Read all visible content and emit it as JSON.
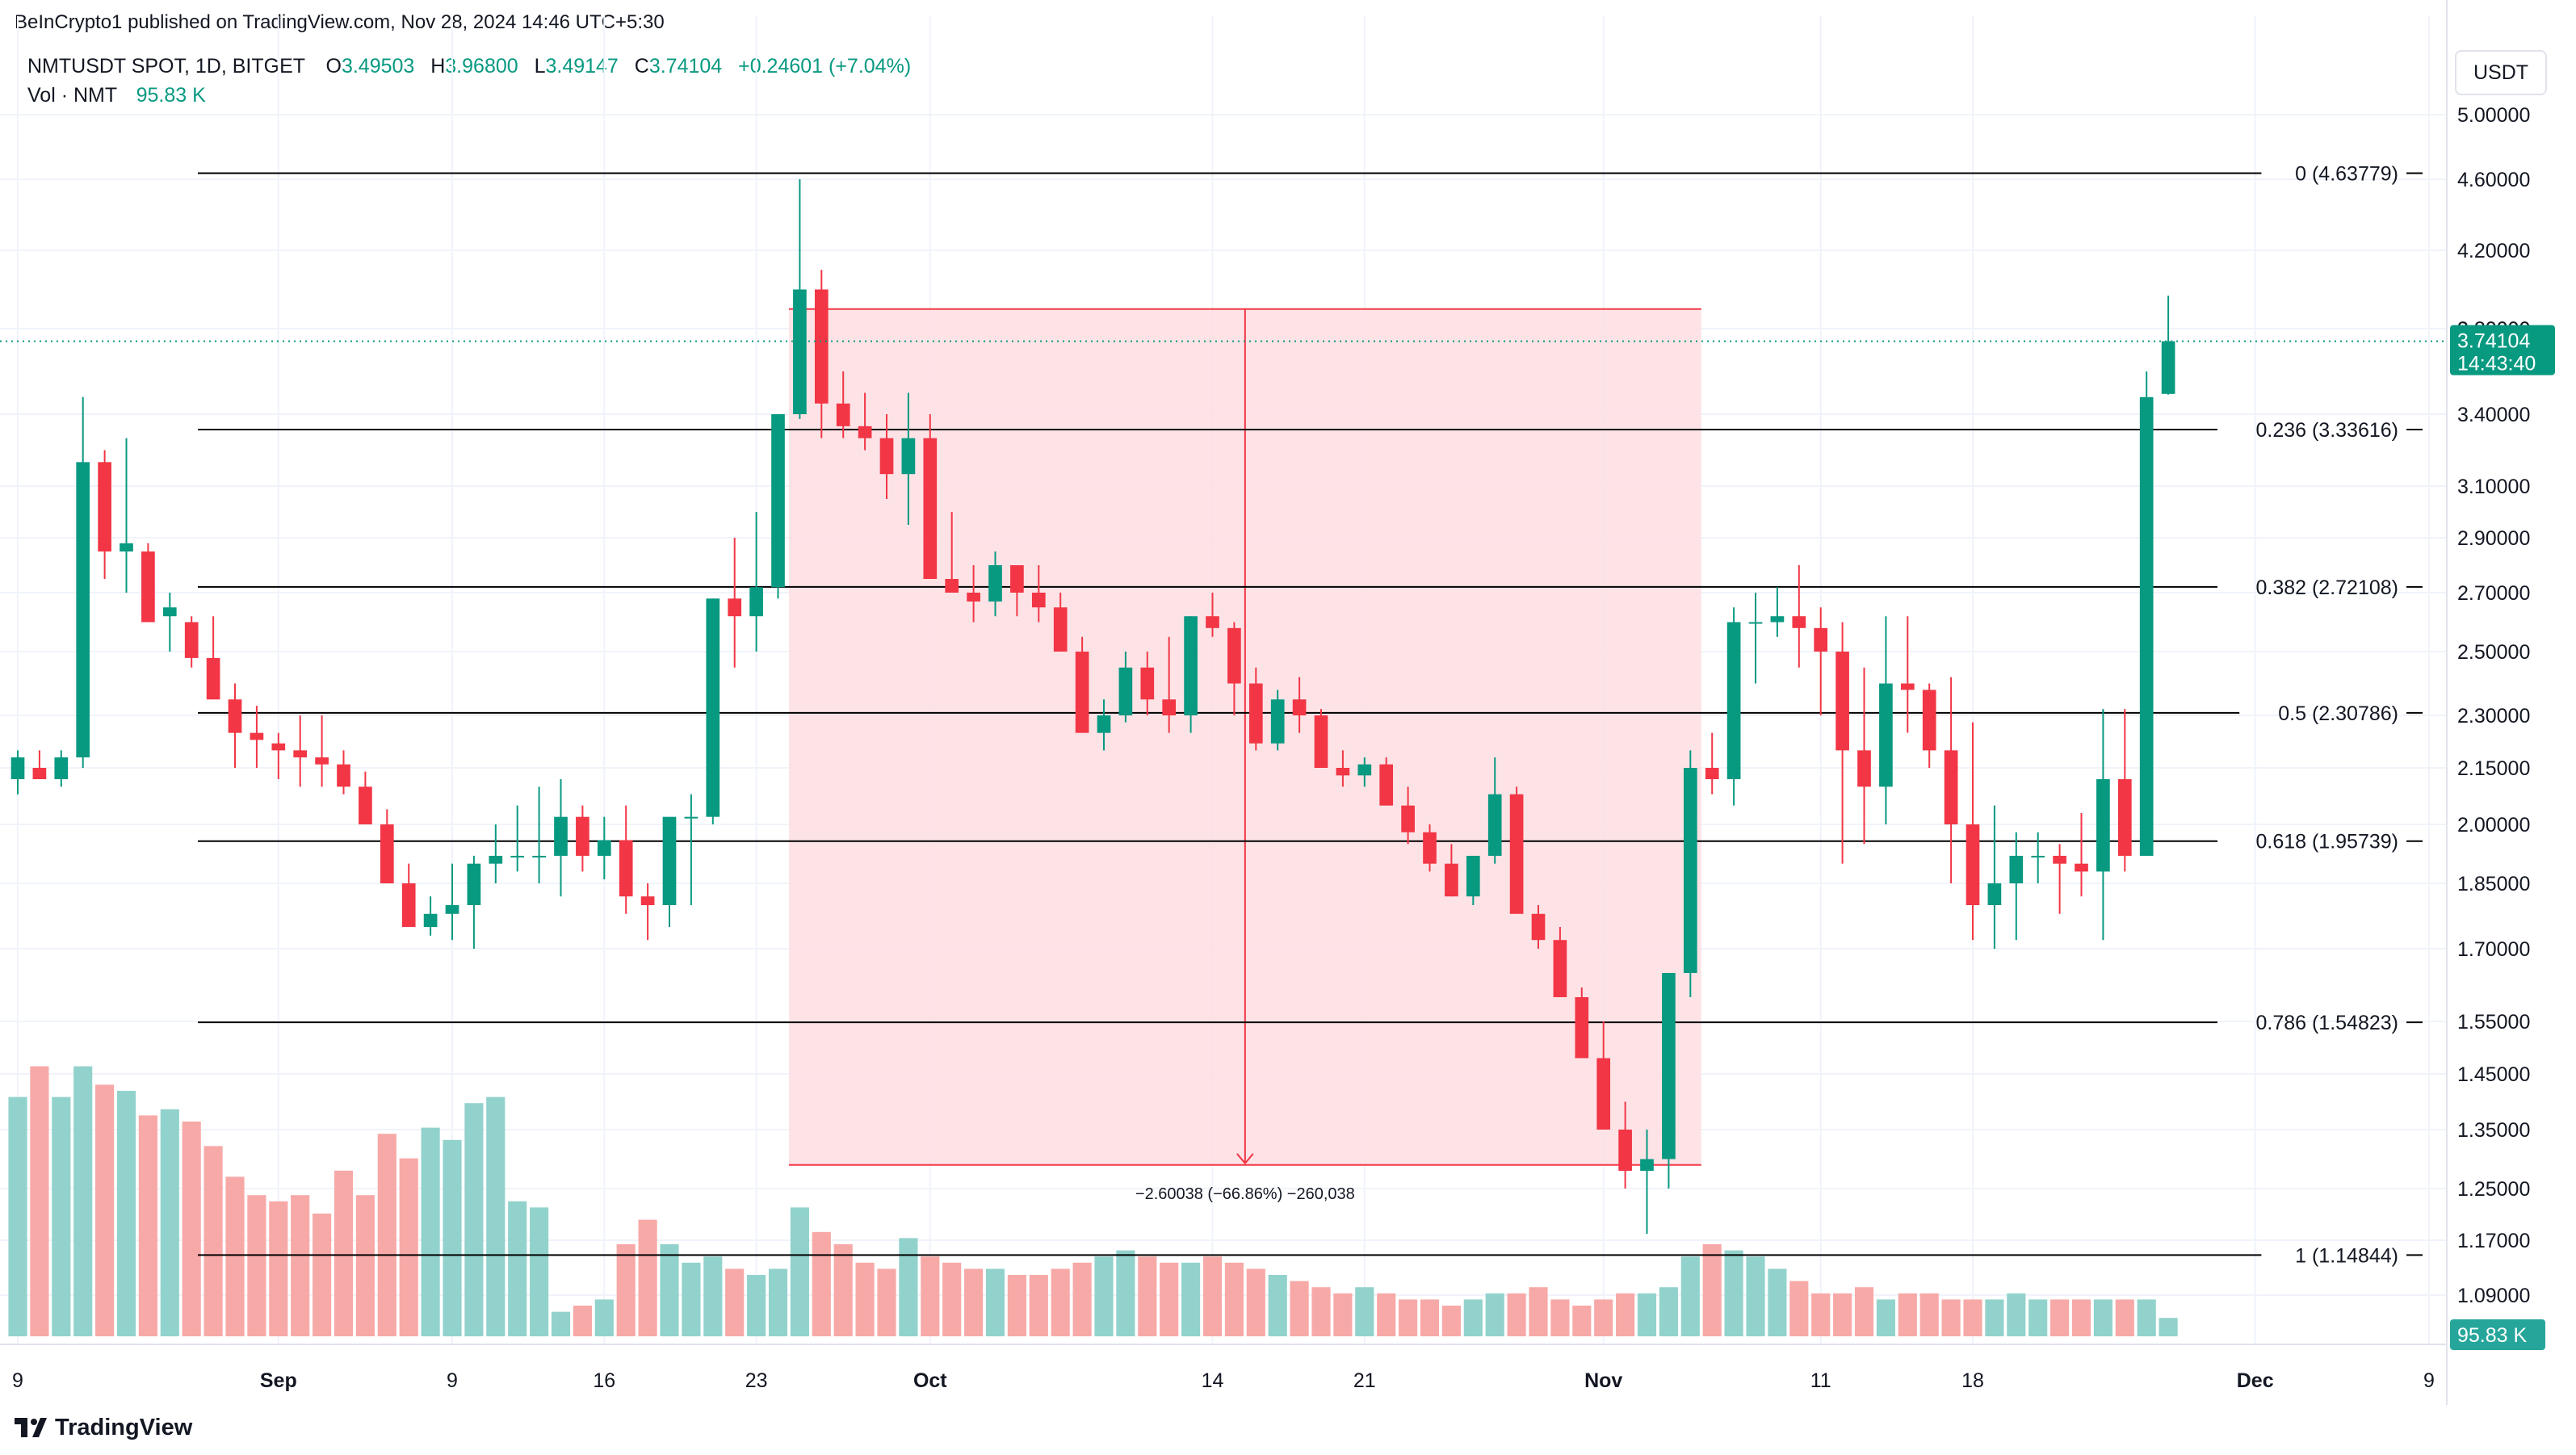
{
  "publisher_line": "BeInCrypto1 published on TradingView.com, Nov 28, 2024 14:46 UTC+5:30",
  "legend": {
    "symbol": "NMTUSDT SPOT, 1D, BITGET",
    "open_label": "O",
    "open": "3.49503",
    "high_label": "H",
    "high": "3.96800",
    "low_label": "L",
    "low": "3.49147",
    "close_label": "C",
    "close": "3.74104",
    "change": "+0.24601 (+7.04%)",
    "volume_label": "Vol · NMT",
    "volume": "95.83 K"
  },
  "currency": "USDT",
  "footer_brand": "TradingView",
  "colors": {
    "up": "#089981",
    "down": "#f23645",
    "up_volume": "#92d2cc",
    "down_volume": "#f7a9a7",
    "range_fill": "#fde0e3",
    "range_line": "#f23645",
    "fib_line": "#000000"
  },
  "chart_data": {
    "type": "candlestick",
    "y_ticks": [
      "5.00000",
      "4.60000",
      "4.20000",
      "3.80000",
      "3.40000",
      "3.10000",
      "2.90000",
      "2.70000",
      "2.50000",
      "2.30000",
      "2.15000",
      "2.00000",
      "1.85000",
      "1.70000",
      "1.55000",
      "1.45000",
      "1.35000",
      "1.25000",
      "1.17000",
      "1.09000"
    ],
    "x_ticks": [
      {
        "label": "9",
        "i": 0
      },
      {
        "label": "Sep",
        "i": 12
      },
      {
        "label": "9",
        "i": 20
      },
      {
        "label": "16",
        "i": 27
      },
      {
        "label": "23",
        "i": 34
      },
      {
        "label": "Oct",
        "i": 42
      },
      {
        "label": "14",
        "i": 55
      },
      {
        "label": "21",
        "i": 62
      },
      {
        "label": "Nov",
        "i": 73
      },
      {
        "label": "11",
        "i": 83
      },
      {
        "label": "18",
        "i": 90
      },
      {
        "label": "Dec",
        "i": 103
      },
      {
        "label": "9",
        "i": 111
      }
    ],
    "fib_levels": [
      {
        "label": "0 (4.63779)",
        "value": 4.63779
      },
      {
        "label": "0.236 (3.33616)",
        "value": 3.33616
      },
      {
        "label": "0.382 (2.72108)",
        "value": 2.72108
      },
      {
        "label": "0.5 (2.30786)",
        "value": 2.30786
      },
      {
        "label": "0.618 (1.95739)",
        "value": 1.95739
      },
      {
        "label": "0.786 (1.54823)",
        "value": 1.54823
      },
      {
        "label": "1 (1.14844)",
        "value": 1.14844
      }
    ],
    "price_range": {
      "from_index": 36,
      "to_index": 77,
      "top": 3.9,
      "bottom": 1.29,
      "label": "−2.60038 (−66.86%) −260,038"
    },
    "last_price": {
      "value": 3.74104,
      "label": "3.74104",
      "countdown": "14:43:40",
      "partial_tick": "3.80000"
    },
    "last_volume_label": "95.83 K",
    "candles": [
      [
        2.12,
        2.2,
        2.08,
        2.18,
        0.78
      ],
      [
        2.15,
        2.2,
        2.12,
        2.12,
        0.88
      ],
      [
        2.12,
        2.2,
        2.1,
        2.18,
        0.78
      ],
      [
        2.18,
        3.48,
        2.15,
        3.2,
        0.88
      ],
      [
        3.2,
        3.25,
        2.75,
        2.85,
        0.82
      ],
      [
        2.85,
        3.3,
        2.7,
        2.88,
        0.8
      ],
      [
        2.85,
        2.88,
        2.6,
        2.6,
        0.72
      ],
      [
        2.62,
        2.7,
        2.5,
        2.65,
        0.74
      ],
      [
        2.6,
        2.62,
        2.45,
        2.48,
        0.7
      ],
      [
        2.48,
        2.62,
        2.35,
        2.35,
        0.62
      ],
      [
        2.35,
        2.4,
        2.15,
        2.25,
        0.52
      ],
      [
        2.25,
        2.33,
        2.15,
        2.23,
        0.46
      ],
      [
        2.22,
        2.25,
        2.12,
        2.2,
        0.44
      ],
      [
        2.2,
        2.3,
        2.1,
        2.18,
        0.46
      ],
      [
        2.18,
        2.3,
        2.1,
        2.16,
        0.4
      ],
      [
        2.16,
        2.2,
        2.08,
        2.1,
        0.54
      ],
      [
        2.1,
        2.14,
        2.0,
        2.0,
        0.46
      ],
      [
        2.0,
        2.04,
        1.85,
        1.85,
        0.66
      ],
      [
        1.85,
        1.9,
        1.75,
        1.75,
        0.58
      ],
      [
        1.75,
        1.82,
        1.73,
        1.78,
        0.68
      ],
      [
        1.78,
        1.9,
        1.72,
        1.8,
        0.64
      ],
      [
        1.8,
        1.92,
        1.7,
        1.9,
        0.76
      ],
      [
        1.9,
        2.0,
        1.85,
        1.92,
        0.78
      ],
      [
        1.92,
        2.05,
        1.88,
        1.92,
        0.44
      ],
      [
        1.92,
        2.1,
        1.85,
        1.92,
        0.42
      ],
      [
        1.92,
        2.12,
        1.82,
        2.02,
        0.08
      ],
      [
        2.02,
        2.05,
        1.88,
        1.92,
        0.1
      ],
      [
        1.92,
        2.02,
        1.86,
        1.96,
        0.12
      ],
      [
        1.96,
        2.05,
        1.78,
        1.82,
        0.3
      ],
      [
        1.82,
        1.85,
        1.72,
        1.8,
        0.38
      ],
      [
        1.8,
        2.0,
        1.75,
        2.02,
        0.3
      ],
      [
        2.02,
        2.08,
        1.8,
        2.02,
        0.24
      ],
      [
        2.02,
        2.68,
        2.0,
        2.68,
        0.26
      ],
      [
        2.68,
        2.9,
        2.45,
        2.62,
        0.22
      ],
      [
        2.62,
        3.0,
        2.5,
        2.72,
        0.2
      ],
      [
        2.72,
        3.4,
        2.68,
        3.4,
        0.22
      ],
      [
        3.4,
        4.6,
        3.38,
        4.0,
        0.42
      ],
      [
        4.0,
        4.1,
        3.3,
        3.45,
        0.34
      ],
      [
        3.45,
        3.6,
        3.3,
        3.35,
        0.3
      ],
      [
        3.35,
        3.5,
        3.25,
        3.3,
        0.24
      ],
      [
        3.3,
        3.4,
        3.05,
        3.15,
        0.22
      ],
      [
        3.15,
        3.5,
        2.95,
        3.3,
        0.32
      ],
      [
        3.3,
        3.4,
        2.75,
        2.75,
        0.26
      ],
      [
        2.75,
        3.0,
        2.7,
        2.7,
        0.24
      ],
      [
        2.7,
        2.8,
        2.6,
        2.67,
        0.22
      ],
      [
        2.67,
        2.85,
        2.62,
        2.8,
        0.22
      ],
      [
        2.8,
        2.8,
        2.62,
        2.7,
        0.2
      ],
      [
        2.7,
        2.8,
        2.6,
        2.65,
        0.2
      ],
      [
        2.65,
        2.7,
        2.52,
        2.5,
        0.22
      ],
      [
        2.5,
        2.55,
        2.25,
        2.25,
        0.24
      ],
      [
        2.25,
        2.35,
        2.2,
        2.3,
        0.26
      ],
      [
        2.3,
        2.5,
        2.28,
        2.45,
        0.28
      ],
      [
        2.45,
        2.5,
        2.3,
        2.35,
        0.26
      ],
      [
        2.35,
        2.55,
        2.25,
        2.3,
        0.24
      ],
      [
        2.3,
        2.62,
        2.25,
        2.62,
        0.24
      ],
      [
        2.62,
        2.7,
        2.55,
        2.58,
        0.26
      ],
      [
        2.58,
        2.6,
        2.3,
        2.4,
        0.24
      ],
      [
        2.4,
        2.45,
        2.2,
        2.22,
        0.22
      ],
      [
        2.22,
        2.38,
        2.2,
        2.35,
        0.2
      ],
      [
        2.35,
        2.42,
        2.25,
        2.3,
        0.18
      ],
      [
        2.3,
        2.32,
        2.15,
        2.15,
        0.16
      ],
      [
        2.15,
        2.2,
        2.1,
        2.13,
        0.14
      ],
      [
        2.13,
        2.18,
        2.1,
        2.16,
        0.16
      ],
      [
        2.16,
        2.18,
        2.05,
        2.05,
        0.14
      ],
      [
        2.05,
        2.1,
        1.95,
        1.98,
        0.12
      ],
      [
        1.98,
        2.0,
        1.88,
        1.9,
        0.12
      ],
      [
        1.9,
        1.95,
        1.82,
        1.82,
        0.1
      ],
      [
        1.82,
        1.92,
        1.8,
        1.92,
        0.12
      ],
      [
        1.92,
        2.18,
        1.9,
        2.08,
        0.14
      ],
      [
        2.08,
        2.1,
        1.8,
        1.78,
        0.14
      ],
      [
        1.78,
        1.8,
        1.7,
        1.72,
        0.16
      ],
      [
        1.72,
        1.75,
        1.6,
        1.6,
        0.12
      ],
      [
        1.6,
        1.62,
        1.48,
        1.48,
        0.1
      ],
      [
        1.48,
        1.55,
        1.35,
        1.35,
        0.12
      ],
      [
        1.35,
        1.4,
        1.25,
        1.28,
        0.14
      ],
      [
        1.28,
        1.35,
        1.18,
        1.3,
        0.14
      ],
      [
        1.3,
        1.65,
        1.25,
        1.65,
        0.16
      ],
      [
        1.65,
        2.2,
        1.6,
        2.15,
        0.26
      ],
      [
        2.15,
        2.25,
        2.08,
        2.12,
        0.3
      ],
      [
        2.12,
        2.65,
        2.05,
        2.6,
        0.28
      ],
      [
        2.6,
        2.7,
        2.4,
        2.6,
        0.26
      ],
      [
        2.6,
        2.72,
        2.55,
        2.62,
        0.22
      ],
      [
        2.62,
        2.8,
        2.45,
        2.58,
        0.18
      ],
      [
        2.58,
        2.65,
        2.3,
        2.5,
        0.14
      ],
      [
        2.5,
        2.6,
        1.9,
        2.2,
        0.14
      ],
      [
        2.2,
        2.45,
        1.95,
        2.1,
        0.16
      ],
      [
        2.1,
        2.62,
        2.0,
        2.4,
        0.12
      ],
      [
        2.4,
        2.62,
        2.25,
        2.38,
        0.14
      ],
      [
        2.38,
        2.4,
        2.15,
        2.2,
        0.14
      ],
      [
        2.2,
        2.42,
        1.85,
        2.0,
        0.12
      ],
      [
        2.0,
        2.28,
        1.72,
        1.8,
        0.12
      ],
      [
        1.8,
        2.05,
        1.7,
        1.85,
        0.12
      ],
      [
        1.85,
        1.98,
        1.72,
        1.92,
        0.14
      ],
      [
        1.92,
        1.98,
        1.85,
        1.92,
        0.12
      ],
      [
        1.92,
        1.95,
        1.78,
        1.9,
        0.12
      ],
      [
        1.9,
        2.03,
        1.82,
        1.88,
        0.12
      ],
      [
        1.88,
        2.32,
        1.72,
        2.12,
        0.12
      ],
      [
        2.12,
        2.32,
        1.88,
        1.92,
        0.12
      ],
      [
        1.92,
        3.6,
        1.92,
        3.48,
        0.12
      ],
      [
        3.49503,
        3.968,
        3.49147,
        3.74104,
        0.06
      ]
    ]
  }
}
